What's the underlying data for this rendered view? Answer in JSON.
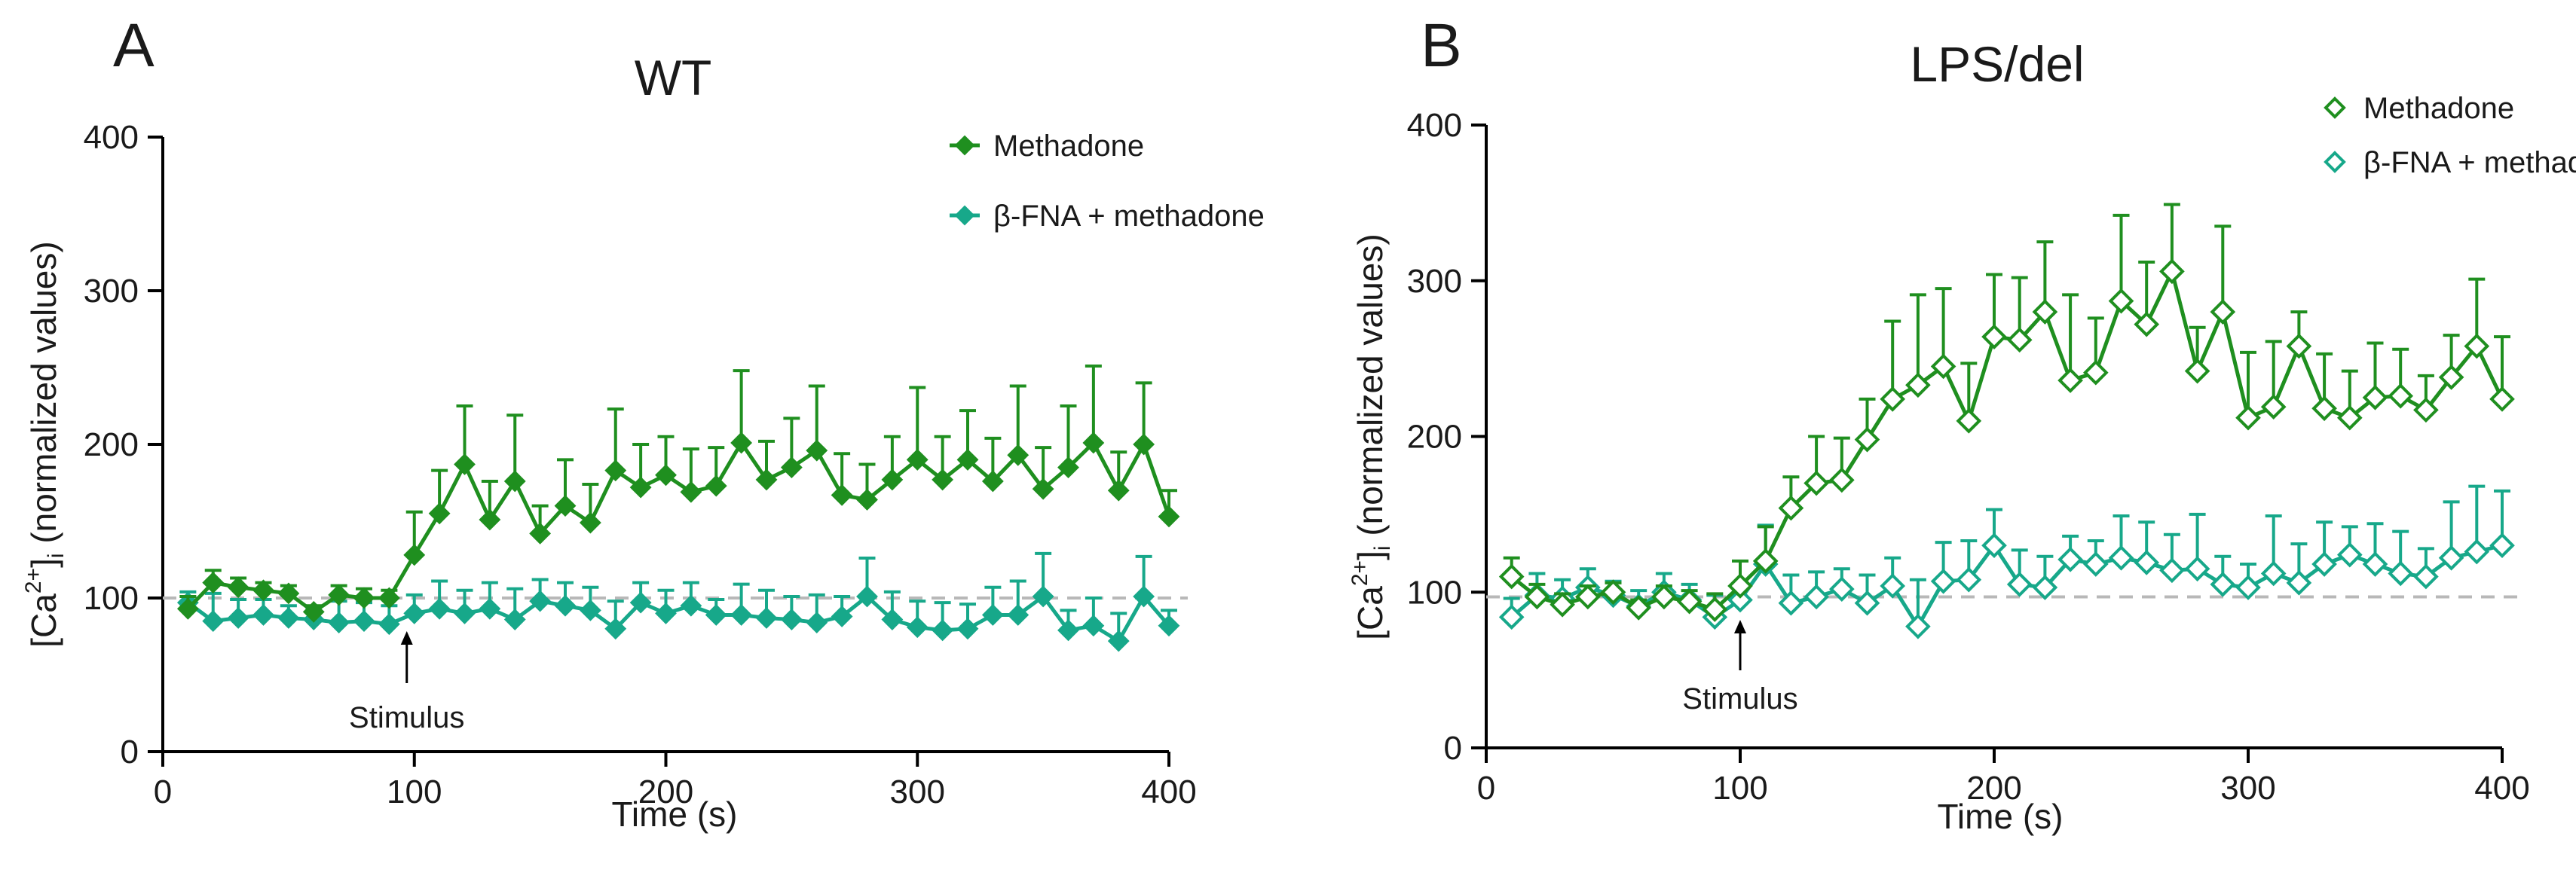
{
  "figure": {
    "panels": [
      "A",
      "B"
    ]
  },
  "colors": {
    "methadone": "#1f8f1f",
    "bfna": "#17a88a",
    "baseline": "#b8b8b8",
    "axis": "#000000"
  },
  "chart_data": [
    {
      "type": "line",
      "panel": "A",
      "title": "WT",
      "xlabel": "Time (s)",
      "ylabel_parts": [
        "[Ca",
        "2+",
        "]",
        "i",
        " (normalized values)"
      ],
      "xlim": [
        0,
        400
      ],
      "ylim": [
        0,
        400
      ],
      "xticks": [
        "0",
        "100",
        "200",
        "300",
        "400"
      ],
      "yticks": [
        "0",
        "100",
        "200",
        "300",
        "400"
      ],
      "marker_style": "filled-diamond",
      "baseline_y": 100,
      "annotation": {
        "text": "Stimulus",
        "x": 97
      },
      "x": [
        10,
        20,
        30,
        40,
        50,
        60,
        70,
        80,
        90,
        100,
        110,
        120,
        130,
        140,
        150,
        160,
        170,
        180,
        190,
        200,
        210,
        220,
        230,
        240,
        250,
        260,
        270,
        280,
        290,
        300,
        310,
        320,
        330,
        340,
        350,
        360,
        370,
        380,
        390,
        400
      ],
      "series": [
        {
          "name": "Methadone",
          "values": [
            93,
            110,
            107,
            105,
            103,
            91,
            102,
            100,
            100,
            128,
            155,
            187,
            151,
            176,
            142,
            160,
            149,
            183,
            172,
            180,
            169,
            173,
            201,
            177,
            185,
            196,
            167,
            164,
            177,
            190,
            177,
            190,
            176,
            193,
            171,
            185,
            201,
            170,
            200,
            153
          ],
          "errors": [
            8,
            8,
            6,
            5,
            5,
            4,
            6,
            6,
            5,
            28,
            28,
            38,
            25,
            43,
            18,
            30,
            25,
            40,
            28,
            25,
            28,
            25,
            47,
            25,
            32,
            42,
            27,
            23,
            28,
            47,
            28,
            32,
            28,
            45,
            27,
            40,
            50,
            25,
            40,
            17
          ]
        },
        {
          "name": "β-FNA + methadone",
          "values": [
            97,
            85,
            87,
            89,
            87,
            86,
            84,
            85,
            83,
            90,
            93,
            90,
            93,
            86,
            98,
            95,
            92,
            80,
            97,
            90,
            95,
            89,
            89,
            87,
            86,
            84,
            88,
            101,
            86,
            81,
            79,
            80,
            89,
            89,
            101,
            79,
            82,
            72,
            101,
            82
          ],
          "errors": [
            7,
            18,
            12,
            10,
            8,
            8,
            14,
            12,
            12,
            12,
            18,
            15,
            17,
            20,
            14,
            15,
            15,
            18,
            13,
            15,
            15,
            10,
            20,
            18,
            15,
            18,
            13,
            25,
            18,
            17,
            18,
            16,
            18,
            22,
            28,
            13,
            18,
            18,
            26,
            10
          ]
        }
      ]
    },
    {
      "type": "line",
      "panel": "B",
      "title": "LPS/del",
      "xlabel": "Time (s)",
      "ylabel_parts": [
        "[Ca",
        "2+",
        "]",
        "i",
        " (normalized values)"
      ],
      "xlim": [
        0,
        400
      ],
      "ylim": [
        0,
        400
      ],
      "xticks": [
        "0",
        "100",
        "200",
        "300",
        "400"
      ],
      "yticks": [
        "0",
        "100",
        "200",
        "300",
        "400"
      ],
      "marker_style": "open-diamond",
      "baseline_y": 97,
      "annotation": {
        "text": "Stimulus",
        "x": 100
      },
      "x": [
        10,
        20,
        30,
        40,
        50,
        60,
        70,
        80,
        90,
        100,
        110,
        120,
        130,
        140,
        150,
        160,
        170,
        180,
        190,
        200,
        210,
        220,
        230,
        240,
        250,
        260,
        270,
        280,
        290,
        300,
        310,
        320,
        330,
        340,
        350,
        360,
        370,
        380,
        390,
        400
      ],
      "series": [
        {
          "name": "Methadone",
          "values": [
            110,
            97,
            92,
            97,
            100,
            90,
            97,
            94,
            89,
            104,
            120,
            154,
            170,
            172,
            198,
            224,
            233,
            245,
            210,
            264,
            262,
            280,
            236,
            241,
            287,
            272,
            306,
            242,
            280,
            212,
            219,
            258,
            218,
            212,
            225,
            226,
            217,
            238,
            258,
            224
          ],
          "errors": [
            12,
            8,
            7,
            7,
            6,
            5,
            7,
            7,
            10,
            16,
            22,
            20,
            30,
            27,
            26,
            50,
            58,
            50,
            37,
            40,
            40,
            45,
            55,
            35,
            55,
            40,
            43,
            28,
            55,
            42,
            42,
            22,
            35,
            30,
            35,
            30,
            22,
            27,
            43,
            40
          ]
        },
        {
          "name": "β-FNA + methadone",
          "values": [
            84,
            98,
            96,
            103,
            98,
            91,
            100,
            95,
            84,
            95,
            118,
            93,
            97,
            102,
            93,
            104,
            78,
            107,
            108,
            130,
            105,
            103,
            121,
            118,
            122,
            119,
            114,
            115,
            105,
            103,
            112,
            106,
            118,
            124,
            118,
            112,
            110,
            122,
            126,
            130
          ],
          "errors": [
            12,
            14,
            12,
            12,
            9,
            10,
            12,
            10,
            14,
            10,
            25,
            18,
            16,
            13,
            18,
            18,
            30,
            25,
            25,
            23,
            22,
            20,
            15,
            15,
            27,
            26,
            23,
            35,
            18,
            15,
            37,
            25,
            27,
            18,
            26,
            27,
            18,
            36,
            42,
            35
          ]
        }
      ]
    }
  ]
}
